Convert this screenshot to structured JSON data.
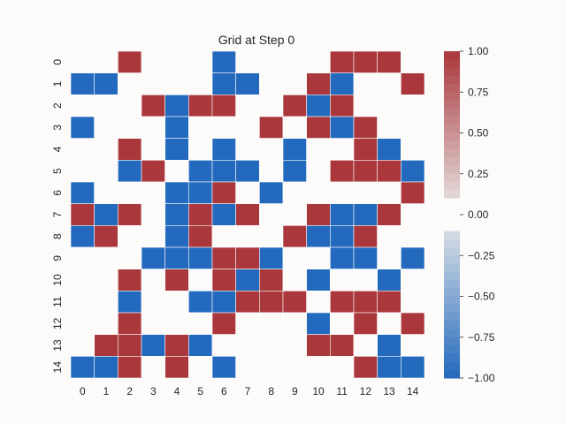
{
  "chart_data": {
    "type": "heatmap",
    "title": "Grid at Step 0",
    "xlabel": "",
    "ylabel": "",
    "x_ticks": [
      "0",
      "1",
      "2",
      "3",
      "4",
      "5",
      "6",
      "7",
      "8",
      "9",
      "10",
      "11",
      "12",
      "13",
      "14"
    ],
    "y_ticks": [
      "0",
      "1",
      "2",
      "3",
      "4",
      "5",
      "6",
      "7",
      "8",
      "9",
      "10",
      "11",
      "12",
      "13",
      "14"
    ],
    "values": [
      [
        0,
        0,
        1,
        0,
        0,
        0,
        -1,
        0,
        0,
        0,
        0,
        1,
        1,
        1,
        0
      ],
      [
        -1,
        -1,
        0,
        0,
        0,
        0,
        -1,
        -1,
        0,
        0,
        1,
        -1,
        0,
        0,
        1
      ],
      [
        0,
        0,
        0,
        1,
        -1,
        1,
        1,
        0,
        0,
        1,
        -1,
        1,
        0,
        0,
        0
      ],
      [
        -1,
        0,
        0,
        0,
        -1,
        0,
        0,
        0,
        1,
        0,
        1,
        -1,
        1,
        0,
        0
      ],
      [
        0,
        0,
        1,
        0,
        -1,
        0,
        -1,
        0,
        0,
        -1,
        0,
        0,
        1,
        -1,
        0
      ],
      [
        0,
        0,
        -1,
        1,
        0,
        -1,
        -1,
        -1,
        0,
        -1,
        0,
        1,
        1,
        1,
        -1
      ],
      [
        -1,
        0,
        0,
        0,
        -1,
        -1,
        1,
        0,
        -1,
        0,
        0,
        0,
        0,
        0,
        1
      ],
      [
        1,
        -1,
        1,
        0,
        -1,
        1,
        -1,
        1,
        0,
        0,
        1,
        -1,
        -1,
        1,
        0
      ],
      [
        -1,
        1,
        0,
        0,
        -1,
        1,
        0,
        0,
        0,
        1,
        -1,
        -1,
        1,
        0,
        0
      ],
      [
        0,
        0,
        0,
        -1,
        -1,
        -1,
        1,
        1,
        -1,
        0,
        0,
        -1,
        -1,
        0,
        -1
      ],
      [
        0,
        0,
        1,
        0,
        1,
        0,
        1,
        -1,
        1,
        0,
        -1,
        0,
        0,
        -1,
        0
      ],
      [
        0,
        0,
        -1,
        0,
        0,
        -1,
        -1,
        1,
        1,
        1,
        0,
        1,
        1,
        1,
        0
      ],
      [
        0,
        0,
        1,
        0,
        0,
        0,
        1,
        0,
        0,
        0,
        -1,
        0,
        1,
        0,
        1
      ],
      [
        0,
        1,
        1,
        -1,
        1,
        -1,
        0,
        0,
        0,
        0,
        1,
        1,
        0,
        -1,
        0
      ],
      [
        -1,
        -1,
        1,
        0,
        1,
        0,
        -1,
        0,
        0,
        0,
        0,
        0,
        1,
        -1,
        -1
      ]
    ],
    "vmin": -1,
    "vmax": 1,
    "colorbar_ticks": [
      "1.00",
      "0.75",
      "0.50",
      "0.25",
      "0.00",
      "−0.25",
      "−0.50",
      "−0.75",
      "−1.00"
    ],
    "colors": {
      "positive": "#a9373b",
      "negative": "#2369bd",
      "zero": "#fcfbfa"
    },
    "grid": true,
    "legend": "colorbar-right"
  }
}
